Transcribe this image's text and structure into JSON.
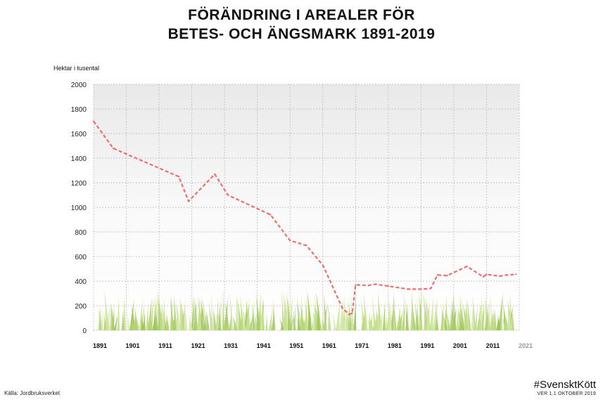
{
  "title": {
    "line1": "FÖRÄNDRING I AREALER FÖR",
    "line2": "BETES- OCH ÄNGSMARK 1891-2019"
  },
  "source": "Källa: Jordbruksverket",
  "brand": {
    "hashtag": "#SvensktKött",
    "version": "VER 1.1 OKTOBER 2019"
  },
  "chart_data": {
    "type": "line",
    "ylabel": "Hektar i tusental",
    "xlabel": "",
    "xlim": [
      1891,
      2021
    ],
    "ylim": [
      0,
      2000
    ],
    "grid": true,
    "x_ticks": [
      1891,
      1901,
      1911,
      1921,
      1931,
      1941,
      1951,
      1961,
      1971,
      1981,
      1991,
      2001,
      2011,
      2021
    ],
    "x_tick_labels": [
      "1891",
      "1901",
      "1911",
      "1921",
      "1931",
      "1941",
      "1951",
      "1961",
      "1971",
      "1981",
      "1991",
      "2001",
      "2011",
      "2021"
    ],
    "x_tick_muted": [
      "2021"
    ],
    "y_ticks": [
      0,
      200,
      400,
      600,
      800,
      1000,
      1200,
      1400,
      1600,
      1800,
      2000
    ],
    "y_tick_labels": [
      "0",
      "200",
      "400",
      "600",
      "800",
      "1000",
      "1200",
      "1400",
      "1600",
      "1800",
      "2000"
    ],
    "series": [
      {
        "color": "#e8716f",
        "style": "dashed",
        "x": [
          1891,
          1897,
          1917,
          1920,
          1928,
          1932,
          1945,
          1951,
          1956,
          1961,
          1967,
          1969,
          1970,
          1971,
          1975,
          1977,
          1981,
          1987,
          1991,
          1994,
          1996,
          1999,
          2005,
          2010,
          2011,
          2015,
          2017,
          2020
        ],
        "y": [
          1700,
          1480,
          1250,
          1050,
          1270,
          1100,
          940,
          730,
          690,
          530,
          180,
          130,
          140,
          370,
          365,
          375,
          360,
          335,
          335,
          340,
          450,
          445,
          520,
          435,
          455,
          440,
          450,
          455
        ]
      }
    ]
  }
}
